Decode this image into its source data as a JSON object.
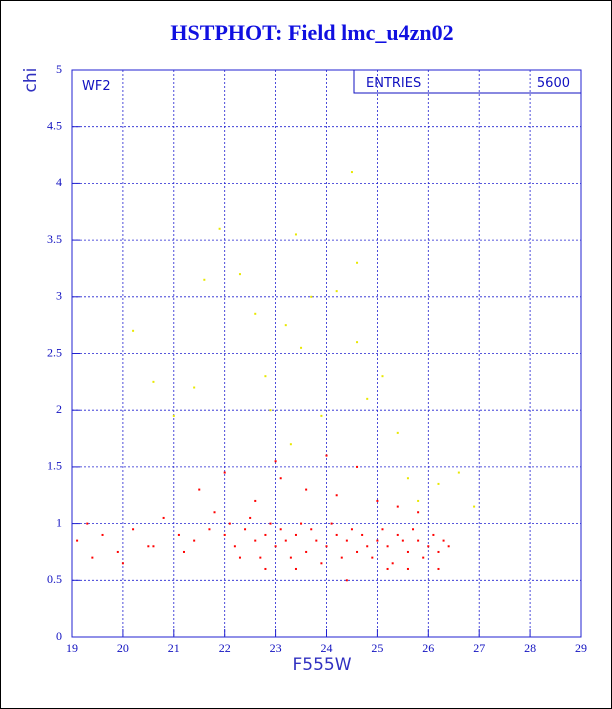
{
  "chart_data": {
    "type": "scatter",
    "title": "HSTPHOT: Field lmc_u4zn02",
    "x_label": "F555W",
    "y_label": "chi",
    "panel_label": "WF2",
    "stats": {
      "label": "ENTRIES",
      "value": 5600
    },
    "xlim": [
      19,
      29
    ],
    "ylim": [
      0,
      5
    ],
    "xticks": [
      19,
      20,
      21,
      22,
      23,
      24,
      25,
      26,
      27,
      28,
      29
    ],
    "yticks": [
      0,
      0.5,
      1,
      1.5,
      2,
      2.5,
      3,
      3.5,
      4,
      4.5,
      5
    ],
    "grid": true,
    "series": [
      {
        "color": "#ff0000",
        "x": [
          19.1,
          19.3,
          19.6,
          19.9,
          20.2,
          20.5,
          20.8,
          21.1,
          21.4,
          21.7,
          22.0,
          22.2,
          22.4,
          22.6,
          22.8,
          23.0,
          23.2,
          23.4,
          23.6,
          23.8,
          24.0,
          24.2,
          24.4,
          24.6,
          24.8,
          25.0,
          25.2,
          25.4,
          25.6,
          25.8,
          26.0,
          26.2,
          26.4,
          19.4,
          20.0,
          20.6,
          21.2,
          21.8,
          22.1,
          22.3,
          22.5,
          22.7,
          22.9,
          23.1,
          23.3,
          23.5,
          23.7,
          23.9,
          24.1,
          24.3,
          24.5,
          24.7,
          24.9,
          25.1,
          25.3,
          25.5,
          25.7,
          25.9,
          26.1,
          26.3,
          21.5,
          22.0,
          22.6,
          23.1,
          23.6,
          24.2,
          24.6,
          25.0,
          25.4,
          25.8,
          26.2,
          23.4,
          24.4,
          25.2,
          22.8,
          24.0,
          23.0,
          25.6
        ],
        "y": [
          0.85,
          1.0,
          0.9,
          0.75,
          0.95,
          0.8,
          1.05,
          0.9,
          0.85,
          0.95,
          0.9,
          0.8,
          0.95,
          0.85,
          0.9,
          0.8,
          0.85,
          0.9,
          0.75,
          0.85,
          0.8,
          0.9,
          0.85,
          0.75,
          0.8,
          0.85,
          0.8,
          0.9,
          0.75,
          0.85,
          0.8,
          0.75,
          0.8,
          0.7,
          0.65,
          0.8,
          0.75,
          1.1,
          1.0,
          0.7,
          1.05,
          0.7,
          1.0,
          0.95,
          0.7,
          1.0,
          0.95,
          0.65,
          1.0,
          0.7,
          0.95,
          0.9,
          0.7,
          0.95,
          0.65,
          0.85,
          0.95,
          0.7,
          0.9,
          0.85,
          1.3,
          1.45,
          1.2,
          1.4,
          1.3,
          1.25,
          1.5,
          1.2,
          1.15,
          1.1,
          0.6,
          0.6,
          0.5,
          0.6,
          0.6,
          1.6,
          1.55,
          0.6
        ]
      },
      {
        "color": "#e8e800",
        "x": [
          20.2,
          20.6,
          21.0,
          21.4,
          21.6,
          21.9,
          22.3,
          22.6,
          22.8,
          23.2,
          23.4,
          23.5,
          23.7,
          23.9,
          24.2,
          24.5,
          24.6,
          24.8,
          25.1,
          25.4,
          25.6,
          25.8,
          26.2,
          26.6,
          26.9,
          24.6,
          23.3,
          22.9
        ],
        "y": [
          2.7,
          2.25,
          1.95,
          2.2,
          3.15,
          3.6,
          3.2,
          2.85,
          2.3,
          2.75,
          3.55,
          2.55,
          3.0,
          1.95,
          3.05,
          4.1,
          2.6,
          2.1,
          2.3,
          1.8,
          1.4,
          1.2,
          1.35,
          1.45,
          1.15,
          3.3,
          1.7,
          2.0
        ]
      }
    ]
  }
}
